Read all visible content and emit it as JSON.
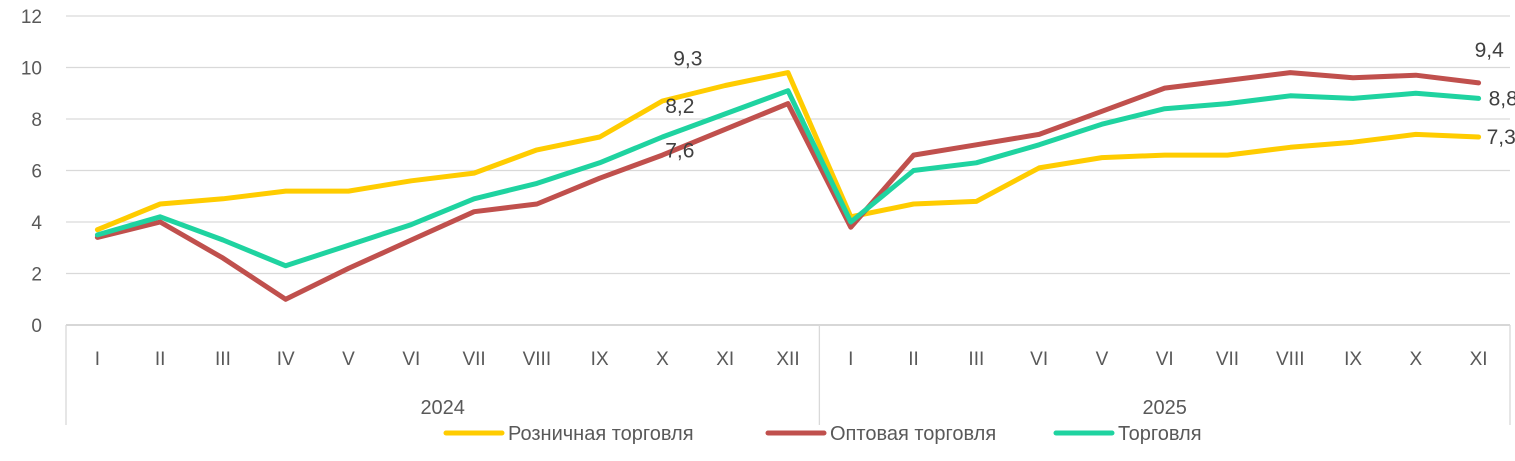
{
  "chart_data": {
    "type": "line",
    "ylim": [
      0,
      12
    ],
    "yticks": [
      0,
      2,
      4,
      6,
      8,
      10,
      12
    ],
    "grid": true,
    "legend_position": "bottom",
    "categories": [
      "I",
      "II",
      "III",
      "IV",
      "V",
      "VI",
      "VII",
      "VIII",
      "IX",
      "X",
      "XI",
      "XII",
      "I",
      "II",
      "III",
      "VI",
      "V",
      "VI",
      "VII",
      "VIII",
      "IX",
      "X",
      "XI"
    ],
    "groups": [
      {
        "label": "2024",
        "start": 0,
        "end": 11
      },
      {
        "label": "2025",
        "start": 12,
        "end": 22
      }
    ],
    "series": [
      {
        "name": "Розничная торговля",
        "color": "#FFCC00",
        "values": [
          3.7,
          4.7,
          4.9,
          5.2,
          5.2,
          5.6,
          5.9,
          6.8,
          7.3,
          8.7,
          9.3,
          9.8,
          4.2,
          4.7,
          4.8,
          6.1,
          6.5,
          6.6,
          6.6,
          6.9,
          7.1,
          7.4,
          7.3
        ]
      },
      {
        "name": "Оптовая торговля",
        "color": "#C0504D",
        "values": [
          3.4,
          4.0,
          2.6,
          1.0,
          2.2,
          3.3,
          4.4,
          4.7,
          5.7,
          6.6,
          7.6,
          8.6,
          3.8,
          6.6,
          7.0,
          7.4,
          8.3,
          9.2,
          9.5,
          9.8,
          9.6,
          9.7,
          9.4
        ]
      },
      {
        "name": "Торговля",
        "color": "#1FD3A0",
        "values": [
          3.5,
          4.2,
          3.3,
          2.3,
          3.1,
          3.9,
          4.9,
          5.5,
          6.3,
          7.3,
          8.2,
          9.1,
          4.0,
          6.0,
          6.3,
          7.0,
          7.8,
          8.4,
          8.6,
          8.9,
          8.8,
          9.0,
          8.8
        ]
      }
    ],
    "data_labels": [
      {
        "series": 0,
        "index": 10,
        "text": "9,3"
      },
      {
        "series": 2,
        "index": 10,
        "text": "8,2"
      },
      {
        "series": 1,
        "index": 10,
        "text": "7,6"
      },
      {
        "series": 1,
        "index": 22,
        "text": "9,4"
      },
      {
        "series": 2,
        "index": 22,
        "text": "8,8"
      },
      {
        "series": 0,
        "index": 22,
        "text": "7,3"
      }
    ]
  }
}
